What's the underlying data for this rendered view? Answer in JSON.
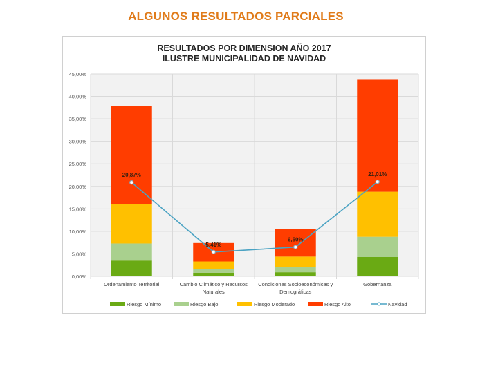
{
  "slide": {
    "title": "ALGUNOS RESULTADOS PARCIALES"
  },
  "chart": {
    "title_line1": "RESULTADOS POR DIMENSION AÑO 2017",
    "title_line2": "ILUSTRE MUNICIPALIDAD DE NAVIDAD"
  },
  "chart_data": {
    "type": "bar",
    "stacked": true,
    "title": "RESULTADOS POR DIMENSION AÑO 2017 ILUSTRE MUNICIPALIDAD DE NAVIDAD",
    "xlabel": "",
    "ylabel": "",
    "ylim": [
      0,
      45
    ],
    "yticks": [
      "0,00%",
      "5,00%",
      "10,00%",
      "15,00%",
      "20,00%",
      "25,00%",
      "30,00%",
      "35,00%",
      "40,00%",
      "45,00%"
    ],
    "grid": true,
    "legend_position": "bottom",
    "categories": [
      "Ordenamiento Territorial",
      "Cambio Climático y Recursos Naturales",
      "Condiciones Socioeconómicas y Demográficas",
      "Gobernanza"
    ],
    "series": [
      {
        "name": "Riesgo Mínimo",
        "type": "bar",
        "color": "#6aaa14",
        "values": [
          3.5,
          0.8,
          0.9,
          4.3
        ]
      },
      {
        "name": "Riesgo Bajo",
        "type": "bar",
        "color": "#a9d08e",
        "values": [
          3.8,
          0.8,
          1.2,
          4.5
        ]
      },
      {
        "name": "Riesgo Moderado",
        "type": "bar",
        "color": "#ffc000",
        "values": [
          8.8,
          1.7,
          2.3,
          10.0
        ]
      },
      {
        "name": "Riesgo Alto",
        "type": "bar",
        "color": "#ff3d00",
        "values": [
          21.7,
          4.1,
          6.1,
          24.9
        ]
      },
      {
        "name": "Navidad",
        "type": "line",
        "color": "#4ba3c3",
        "values": [
          20.87,
          5.41,
          6.5,
          21.01
        ],
        "labels": [
          "20,87%",
          "5,41%",
          "6,50%",
          "21,01%"
        ]
      }
    ]
  }
}
